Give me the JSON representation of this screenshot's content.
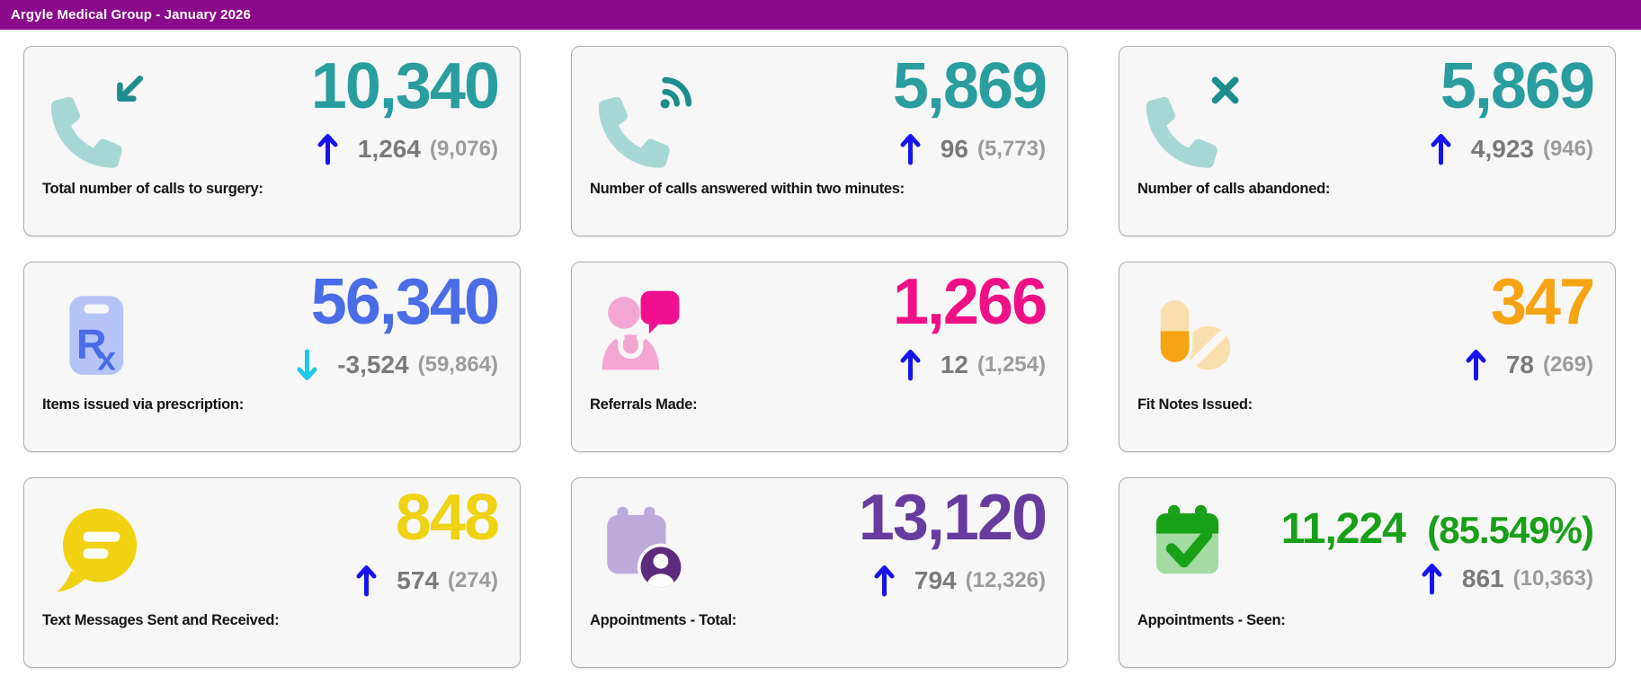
{
  "header": {
    "title": "Argyle Medical Group - January 2026"
  },
  "colors": {
    "header_bg": "#8B0A8B",
    "up_arrow": "#1713EE",
    "down_arrow": "#1FC8E8",
    "delta_text": "#7A7A7A",
    "previous_text": "#9C9C9C",
    "card_bg": "#F7F7F7"
  },
  "cards": [
    {
      "label": "Total number of calls to surgery:",
      "value": "10,340",
      "value_color": "#2A9D9F",
      "icon": "phone-incoming-icon",
      "trend_direction": "up",
      "trend_delta": "1,264",
      "trend_previous": "(9,076)"
    },
    {
      "label": "Number of calls answered within two minutes:",
      "value": "5,869",
      "value_color": "#2A9D9F",
      "icon": "phone-answered-icon",
      "trend_direction": "up",
      "trend_delta": "96",
      "trend_previous": "(5,773)"
    },
    {
      "label": "Number of calls abandoned:",
      "value": "5,869",
      "value_color": "#2A9D9F",
      "icon": "phone-abandoned-icon",
      "trend_direction": "up",
      "trend_delta": "4,923",
      "trend_previous": "(946)"
    },
    {
      "label": "Items issued via prescription:",
      "value": "56,340",
      "value_color": "#4A6CE6",
      "icon": "prescription-icon",
      "trend_direction": "down",
      "trend_delta": "-3,524",
      "trend_previous": "(59,864)"
    },
    {
      "label": "Referrals Made:",
      "value": "1,266",
      "value_color": "#F01086",
      "icon": "referral-message-icon",
      "trend_direction": "up",
      "trend_delta": "12",
      "trend_previous": "(1,254)"
    },
    {
      "label": "Fit Notes Issued:",
      "value": "347",
      "value_color": "#F7A413",
      "icon": "pills-icon",
      "trend_direction": "up",
      "trend_delta": "78",
      "trend_previous": "(269)"
    },
    {
      "label": "Text Messages Sent and Received:",
      "value": "848",
      "value_color": "#EFD211",
      "icon": "chat-bubble-icon",
      "trend_direction": "up",
      "trend_delta": "574",
      "trend_previous": "(274)"
    },
    {
      "label": "Appointments - Total:",
      "value": "13,120",
      "value_color": "#663C9E",
      "icon": "calendar-user-icon",
      "trend_direction": "up",
      "trend_delta": "794",
      "trend_previous": "(12,326)"
    },
    {
      "label": "Appointments - Seen:",
      "value": "11,224",
      "value_suffix": "(85.549%)",
      "value_color": "#18A018",
      "icon": "calendar-check-icon",
      "trend_direction": "up",
      "trend_delta": "861",
      "trend_previous": "(10,363)"
    }
  ]
}
